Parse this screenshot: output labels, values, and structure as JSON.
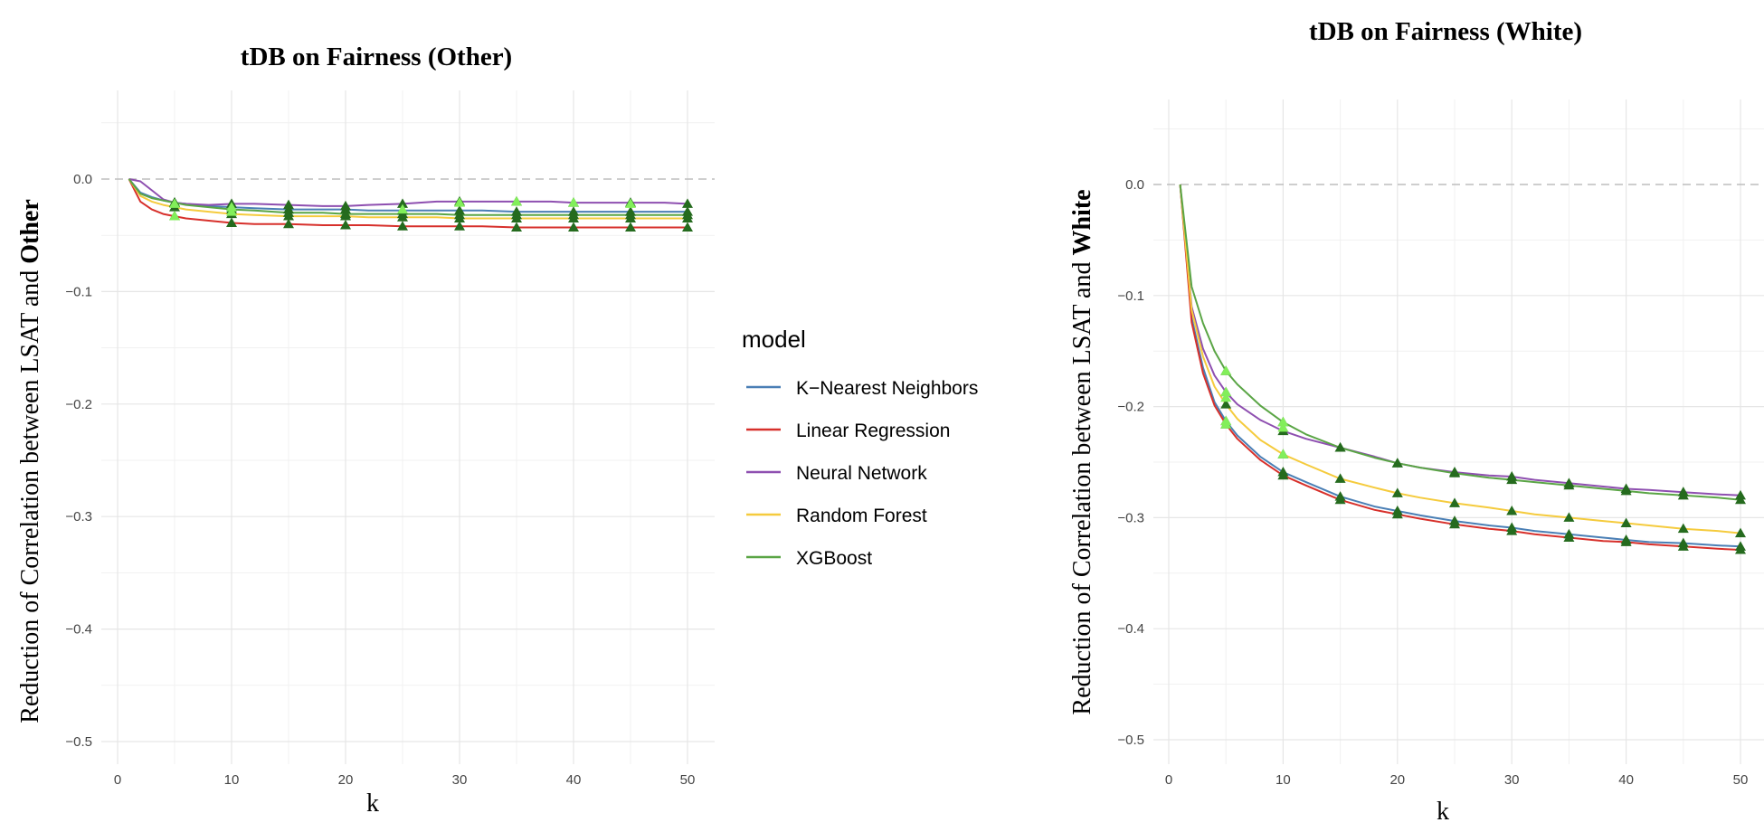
{
  "chart_data": [
    {
      "type": "line",
      "title": "tDB on Fairness (Other)",
      "xlabel": "k",
      "ylabel_prefix": "Reduction of Correlation between LSAT and ",
      "ylabel_group": "Other",
      "xlim": [
        0,
        52
      ],
      "ylim": [
        -0.52,
        0.07
      ],
      "xticks": [
        0,
        10,
        20,
        30,
        40,
        50
      ],
      "xtick_labels": [
        "0",
        "10",
        "20",
        "30",
        "40",
        "50"
      ],
      "yticks": [
        0.0,
        -0.1,
        -0.2,
        -0.3,
        -0.4,
        -0.5
      ],
      "ytick_labels": [
        "0.0",
        "−0.1",
        "−0.2",
        "−0.3",
        "−0.4",
        "−0.5"
      ],
      "reference_line": 0,
      "x": [
        1,
        2,
        3,
        4,
        5,
        6,
        8,
        10,
        12,
        15,
        18,
        20,
        22,
        25,
        28,
        30,
        32,
        35,
        38,
        40,
        42,
        45,
        48,
        50
      ],
      "markers_x": [
        5,
        10,
        15,
        20,
        25,
        30,
        35,
        40,
        45,
        50
      ],
      "series": [
        {
          "name": "K−Nearest Neighbors",
          "color": "#4a7fb5",
          "values": [
            0,
            -0.012,
            -0.016,
            -0.019,
            -0.021,
            -0.022,
            -0.024,
            -0.025,
            -0.026,
            -0.027,
            -0.027,
            -0.027,
            -0.028,
            -0.028,
            -0.028,
            -0.028,
            -0.028,
            -0.029,
            -0.029,
            -0.029,
            -0.029,
            -0.029,
            -0.029,
            -0.029
          ],
          "marker_values": [
            -0.021,
            -0.025,
            -0.027,
            -0.027,
            -0.028,
            -0.028,
            -0.029,
            -0.029,
            -0.029,
            -0.029
          ]
        },
        {
          "name": "Linear Regression",
          "color": "#d7302b",
          "values": [
            0,
            -0.02,
            -0.027,
            -0.031,
            -0.033,
            -0.035,
            -0.037,
            -0.039,
            -0.04,
            -0.04,
            -0.041,
            -0.041,
            -0.041,
            -0.042,
            -0.042,
            -0.042,
            -0.042,
            -0.043,
            -0.043,
            -0.043,
            -0.043,
            -0.043,
            -0.043,
            -0.043
          ],
          "marker_values": [
            -0.033,
            -0.039,
            -0.04,
            -0.041,
            -0.042,
            -0.042,
            -0.043,
            -0.043,
            -0.043,
            -0.043
          ]
        },
        {
          "name": "Neural Network",
          "color": "#8e4fb0",
          "values": [
            0,
            -0.002,
            -0.01,
            -0.018,
            -0.021,
            -0.022,
            -0.023,
            -0.022,
            -0.022,
            -0.023,
            -0.024,
            -0.024,
            -0.023,
            -0.022,
            -0.02,
            -0.02,
            -0.02,
            -0.02,
            -0.02,
            -0.021,
            -0.021,
            -0.021,
            -0.021,
            -0.022
          ],
          "marker_values": [
            -0.021,
            -0.022,
            -0.023,
            -0.024,
            -0.022,
            -0.02,
            -0.02,
            -0.021,
            -0.021,
            -0.022
          ]
        },
        {
          "name": "Random Forest",
          "color": "#f5cb3d",
          "values": [
            0,
            -0.015,
            -0.02,
            -0.023,
            -0.025,
            -0.027,
            -0.029,
            -0.031,
            -0.032,
            -0.033,
            -0.033,
            -0.033,
            -0.034,
            -0.034,
            -0.034,
            -0.035,
            -0.035,
            -0.035,
            -0.035,
            -0.035,
            -0.035,
            -0.035,
            -0.035,
            -0.035
          ],
          "marker_values": [
            -0.025,
            -0.031,
            -0.033,
            -0.033,
            -0.034,
            -0.035,
            -0.035,
            -0.035,
            -0.035,
            -0.035
          ]
        },
        {
          "name": "XGBoost",
          "color": "#5aa545",
          "values": [
            0,
            -0.013,
            -0.017,
            -0.019,
            -0.021,
            -0.023,
            -0.025,
            -0.027,
            -0.028,
            -0.03,
            -0.03,
            -0.031,
            -0.031,
            -0.031,
            -0.031,
            -0.032,
            -0.032,
            -0.032,
            -0.032,
            -0.032,
            -0.032,
            -0.032,
            -0.032,
            -0.032
          ],
          "marker_values": [
            -0.021,
            -0.027,
            -0.03,
            -0.031,
            -0.031,
            -0.032,
            -0.032,
            -0.032,
            -0.032,
            -0.032
          ]
        }
      ],
      "marker_colors": {
        "dark": "#256b1e",
        "light": "#82ee5a"
      },
      "light_markers": [
        {
          "k": 5,
          "v": -0.033
        },
        {
          "k": 5,
          "v": -0.022
        },
        {
          "k": 10,
          "v": -0.029
        },
        {
          "k": 10,
          "v": -0.025
        },
        {
          "k": 25,
          "v": -0.027
        },
        {
          "k": 30,
          "v": -0.021
        },
        {
          "k": 35,
          "v": -0.02
        },
        {
          "k": 40,
          "v": -0.021
        },
        {
          "k": 45,
          "v": -0.022
        }
      ]
    },
    {
      "type": "line",
      "title": "tDB on Fairness (White)",
      "xlabel": "k",
      "ylabel_prefix": "Reduction of Correlation between LSAT and ",
      "ylabel_group": "White",
      "xlim": [
        0,
        52
      ],
      "ylim": [
        -0.52,
        0.07
      ],
      "xticks": [
        0,
        10,
        20,
        30,
        40,
        50
      ],
      "xtick_labels": [
        "0",
        "10",
        "20",
        "30",
        "40",
        "50"
      ],
      "yticks": [
        0.0,
        -0.1,
        -0.2,
        -0.3,
        -0.4,
        -0.5
      ],
      "ytick_labels": [
        "0.0",
        "−0.1",
        "−0.2",
        "−0.3",
        "−0.4",
        "−0.5"
      ],
      "reference_line": 0,
      "x": [
        1,
        2,
        3,
        4,
        5,
        6,
        8,
        10,
        12,
        15,
        18,
        20,
        22,
        25,
        28,
        30,
        32,
        35,
        38,
        40,
        42,
        45,
        48,
        50
      ],
      "markers_x": [
        5,
        10,
        15,
        20,
        25,
        30,
        35,
        40,
        45,
        50
      ],
      "series": [
        {
          "name": "K−Nearest Neighbors",
          "color": "#4a7fb5",
          "values": [
            0,
            -0.12,
            -0.165,
            -0.196,
            -0.213,
            -0.226,
            -0.245,
            -0.259,
            -0.268,
            -0.281,
            -0.29,
            -0.294,
            -0.298,
            -0.303,
            -0.307,
            -0.309,
            -0.312,
            -0.315,
            -0.318,
            -0.32,
            -0.322,
            -0.323,
            -0.325,
            -0.326
          ],
          "marker_values": [
            -0.213,
            -0.259,
            -0.281,
            -0.294,
            -0.303,
            -0.309,
            -0.315,
            -0.32,
            -0.323,
            -0.326
          ]
        },
        {
          "name": "Linear Regression",
          "color": "#d7302b",
          "values": [
            0,
            -0.124,
            -0.17,
            -0.199,
            -0.216,
            -0.229,
            -0.248,
            -0.262,
            -0.271,
            -0.284,
            -0.293,
            -0.297,
            -0.301,
            -0.306,
            -0.31,
            -0.312,
            -0.315,
            -0.318,
            -0.321,
            -0.322,
            -0.324,
            -0.326,
            -0.328,
            -0.329
          ],
          "marker_values": [
            -0.216,
            -0.262,
            -0.284,
            -0.297,
            -0.306,
            -0.312,
            -0.318,
            -0.322,
            -0.326,
            -0.329
          ]
        },
        {
          "name": "Neural Network",
          "color": "#8e4fb0",
          "values": [
            0,
            -0.11,
            -0.148,
            -0.172,
            -0.187,
            -0.198,
            -0.212,
            -0.222,
            -0.229,
            -0.237,
            -0.245,
            -0.251,
            -0.255,
            -0.259,
            -0.262,
            -0.263,
            -0.266,
            -0.269,
            -0.272,
            -0.274,
            -0.275,
            -0.277,
            -0.279,
            -0.28
          ],
          "marker_values": [
            -0.187,
            -0.222,
            -0.237,
            -0.251,
            -0.259,
            -0.263,
            -0.269,
            -0.274,
            -0.277,
            -0.28
          ]
        },
        {
          "name": "Random Forest",
          "color": "#f5cb3d",
          "values": [
            0,
            -0.113,
            -0.155,
            -0.182,
            -0.198,
            -0.211,
            -0.23,
            -0.243,
            -0.252,
            -0.265,
            -0.273,
            -0.278,
            -0.282,
            -0.287,
            -0.291,
            -0.294,
            -0.297,
            -0.3,
            -0.303,
            -0.305,
            -0.307,
            -0.31,
            -0.312,
            -0.314
          ],
          "marker_values": [
            -0.198,
            -0.243,
            -0.265,
            -0.278,
            -0.287,
            -0.294,
            -0.3,
            -0.305,
            -0.31,
            -0.314
          ]
        },
        {
          "name": "XGBoost",
          "color": "#5aa545",
          "values": [
            0,
            -0.092,
            -0.125,
            -0.15,
            -0.168,
            -0.18,
            -0.199,
            -0.214,
            -0.225,
            -0.237,
            -0.246,
            -0.251,
            -0.255,
            -0.26,
            -0.264,
            -0.266,
            -0.268,
            -0.271,
            -0.274,
            -0.276,
            -0.278,
            -0.28,
            -0.282,
            -0.284
          ],
          "marker_values": [
            -0.168,
            -0.214,
            -0.237,
            -0.251,
            -0.26,
            -0.266,
            -0.271,
            -0.276,
            -0.28,
            -0.284
          ]
        }
      ],
      "marker_colors": {
        "dark": "#256b1e",
        "light": "#82ee5a"
      },
      "light_markers": [
        {
          "k": 5,
          "v": -0.168
        },
        {
          "k": 5,
          "v": -0.187
        },
        {
          "k": 5,
          "v": -0.192
        },
        {
          "k": 5,
          "v": -0.213
        },
        {
          "k": 5,
          "v": -0.216
        },
        {
          "k": 10,
          "v": -0.214
        },
        {
          "k": 10,
          "v": -0.219
        },
        {
          "k": 10,
          "v": -0.243
        }
      ]
    }
  ],
  "legend": {
    "title": "model",
    "items": [
      {
        "label": "K−Nearest Neighbors",
        "color": "#4a7fb5"
      },
      {
        "label": "Linear Regression",
        "color": "#d7302b"
      },
      {
        "label": "Neural Network",
        "color": "#8e4fb0"
      },
      {
        "label": "Random Forest",
        "color": "#f5cb3d"
      },
      {
        "label": "XGBoost",
        "color": "#5aa545"
      }
    ]
  }
}
